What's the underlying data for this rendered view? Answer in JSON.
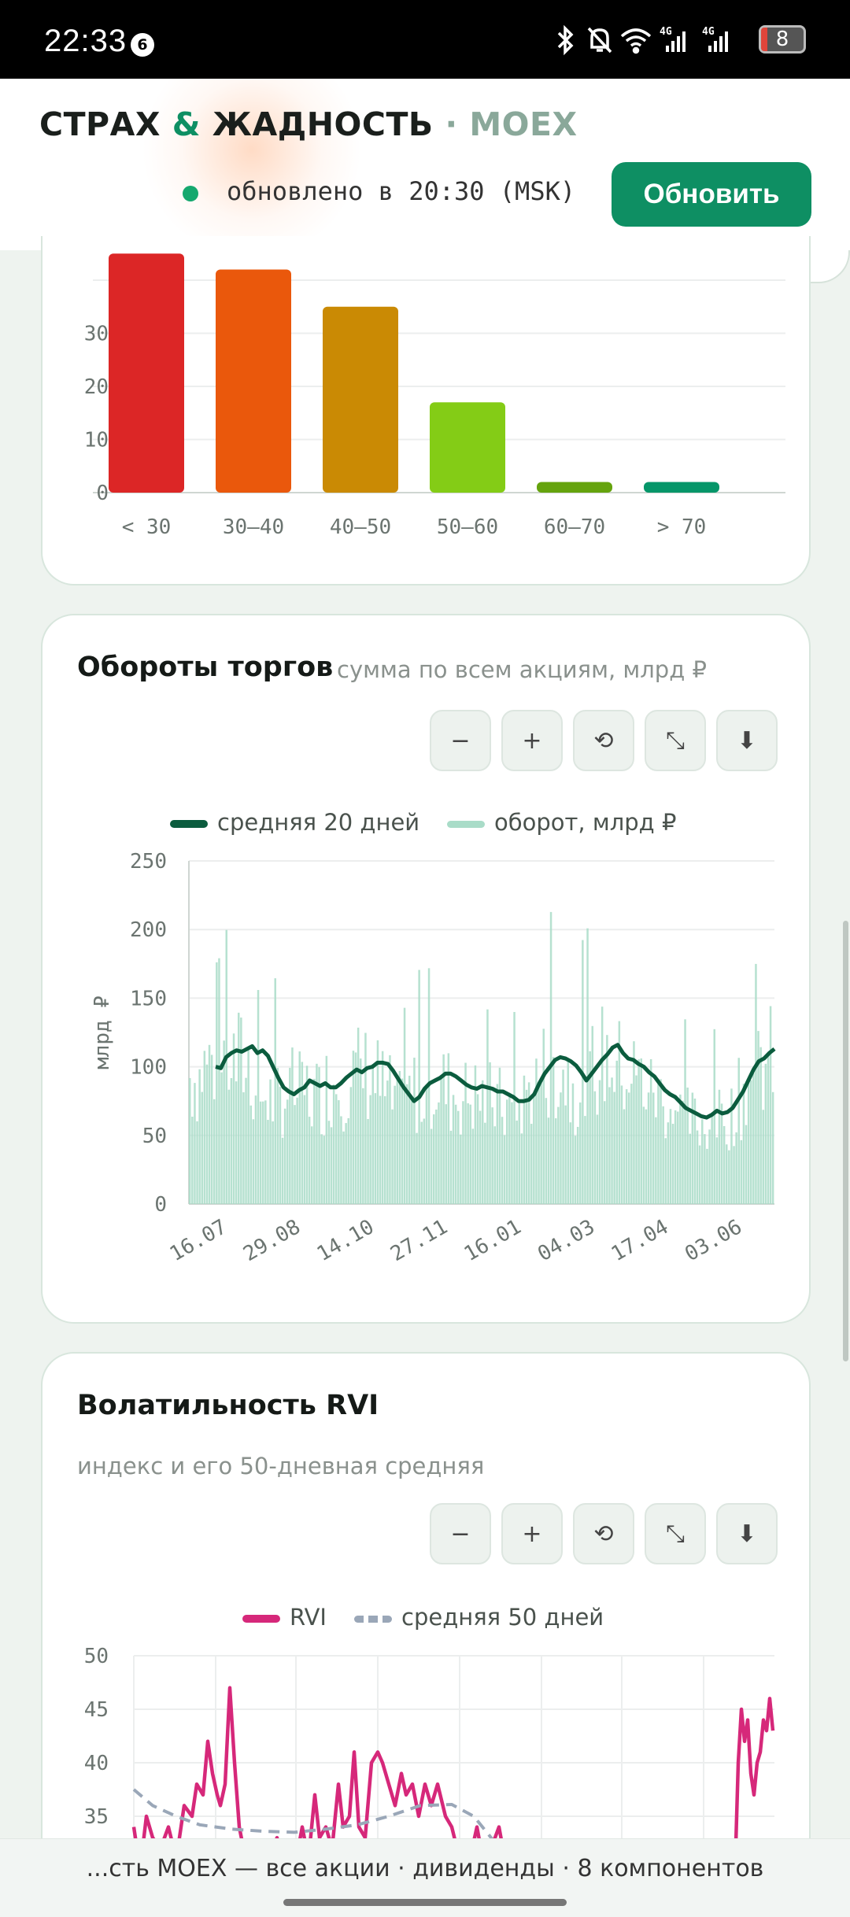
{
  "status_bar": {
    "time": "22:33",
    "badge": "6",
    "net1": "4G",
    "net2": "4G",
    "battery": "8"
  },
  "header": {
    "brand_part1": "СТРАХ ",
    "brand_amp": "&",
    "brand_part2": " ЖАДНОСТЬ",
    "brand_sep": " · ",
    "brand_moex": "MOEX",
    "update_text": "обновлено в 20:30 (MSK)",
    "refresh_label": "Обновить"
  },
  "toolbar": {
    "minus": "−",
    "plus": "+",
    "reset": "⟲",
    "fit": "⤡",
    "download": "⬇"
  },
  "chart_data": [
    {
      "type": "bar",
      "categories": [
        "< 30",
        "30–40",
        "40–50",
        "50–60",
        "60–70",
        "> 70"
      ],
      "values": [
        45,
        42,
        35,
        17,
        2,
        2
      ],
      "colors": [
        "#dc2626",
        "#ea580c",
        "#ca8a04",
        "#84cc16",
        "#65a30d",
        "#059669"
      ],
      "yticks": [
        "0",
        "10",
        "20",
        "30"
      ],
      "ylim": [
        0,
        40
      ]
    },
    {
      "type": "line",
      "title": "Обороты торгов",
      "subtitle": "сумма по всем акциям, млрд ₽",
      "ylabel": "млрд ₽",
      "ylim": [
        0,
        250
      ],
      "yticks": [
        "0",
        "50",
        "100",
        "150",
        "200",
        "250"
      ],
      "xticks": [
        "16.07",
        "29.08",
        "14.10",
        "27.11",
        "16.01",
        "04.03",
        "17.04",
        "03.06"
      ],
      "series": [
        {
          "name": "средняя 20 дней",
          "color": "#0b5c3e",
          "values": [
            100,
            99,
            107,
            110,
            112,
            111,
            113,
            115,
            110,
            112,
            108,
            100,
            92,
            85,
            82,
            80,
            83,
            85,
            90,
            88,
            86,
            88,
            85,
            85,
            88,
            92,
            95,
            98,
            96,
            99,
            100,
            103,
            103,
            102,
            97,
            91,
            85,
            80,
            75,
            78,
            84,
            88,
            90,
            92,
            95,
            95,
            93,
            90,
            87,
            85,
            84,
            86,
            85,
            84,
            82,
            82,
            80,
            78,
            75,
            75,
            76,
            80,
            88,
            95,
            100,
            105,
            107,
            106,
            104,
            101,
            96,
            90,
            95,
            100,
            105,
            109,
            114,
            116,
            110,
            106,
            105,
            102,
            100,
            96,
            93,
            88,
            83,
            80,
            78,
            74,
            70,
            68,
            66,
            64,
            63,
            65,
            68,
            66,
            67,
            70,
            76,
            82,
            90,
            98,
            104,
            106,
            110,
            113
          ]
        },
        {
          "name": "оборот, млрд ₽",
          "color": "#a9dcc8"
        }
      ]
    },
    {
      "type": "line",
      "title": "Волатильность RVI",
      "subtitle": "индекс и его 50-дневная средняя",
      "ylim": [
        30,
        50
      ],
      "yticks": [
        "35",
        "40",
        "45",
        "50"
      ],
      "series": [
        {
          "name": "RVI",
          "color": "#d6287a"
        },
        {
          "name": "средняя 50 дней",
          "color": "#9aa7b8"
        }
      ]
    }
  ],
  "footer": {
    "text": "...сть MOEX — все акции · дивиденды · 8 компонентов"
  }
}
